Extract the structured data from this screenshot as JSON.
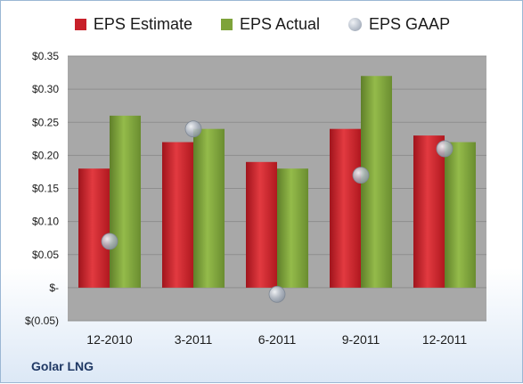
{
  "legend": {
    "estimate": "EPS Estimate",
    "actual": "EPS Actual",
    "gaap": "EPS GAAP"
  },
  "company": "Golar LNG",
  "colors": {
    "estimate": "#c8202a",
    "actual": "#7ea33a",
    "gaap": "#aab2be",
    "plot_bg": "#a8a8a8"
  },
  "chart_data": {
    "type": "bar",
    "categories": [
      "12-2010",
      "3-2011",
      "6-2011",
      "9-2011",
      "12-2011"
    ],
    "series": [
      {
        "name": "EPS Estimate",
        "type": "bar",
        "values": [
          0.18,
          0.22,
          0.19,
          0.24,
          0.23
        ]
      },
      {
        "name": "EPS Actual",
        "type": "bar",
        "values": [
          0.26,
          0.24,
          0.18,
          0.32,
          0.22
        ]
      },
      {
        "name": "EPS GAAP",
        "type": "scatter",
        "values": [
          0.07,
          0.24,
          -0.01,
          0.17,
          0.21
        ]
      }
    ],
    "ylim": [
      -0.05,
      0.35
    ],
    "y_ticks": [
      {
        "value": 0.35,
        "label": "$0.35"
      },
      {
        "value": 0.3,
        "label": "$0.30"
      },
      {
        "value": 0.25,
        "label": "$0.25"
      },
      {
        "value": 0.2,
        "label": "$0.20"
      },
      {
        "value": 0.15,
        "label": "$0.15"
      },
      {
        "value": 0.1,
        "label": "$0.10"
      },
      {
        "value": 0.05,
        "label": "$0.05"
      },
      {
        "value": 0.0,
        "label": "$-"
      },
      {
        "value": -0.05,
        "label": "$(0.05)"
      }
    ],
    "grid": true,
    "legend_position": "top"
  }
}
